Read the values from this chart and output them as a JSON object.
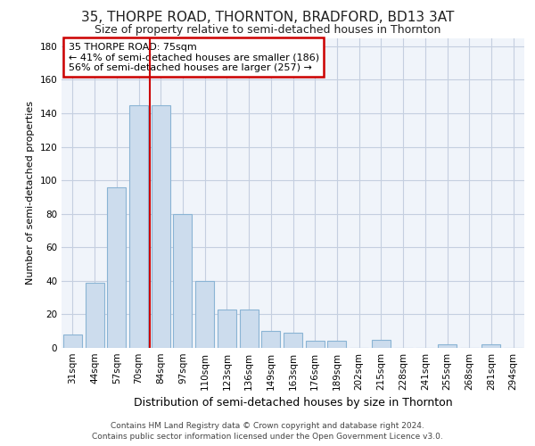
{
  "title": "35, THORPE ROAD, THORNTON, BRADFORD, BD13 3AT",
  "subtitle": "Size of property relative to semi-detached houses in Thornton",
  "xlabel": "Distribution of semi-detached houses by size in Thornton",
  "ylabel": "Number of semi-detached properties",
  "footer_line1": "Contains HM Land Registry data © Crown copyright and database right 2024.",
  "footer_line2": "Contains public sector information licensed under the Open Government Licence v3.0.",
  "categories": [
    "31sqm",
    "44sqm",
    "57sqm",
    "70sqm",
    "84sqm",
    "97sqm",
    "110sqm",
    "123sqm",
    "136sqm",
    "149sqm",
    "163sqm",
    "176sqm",
    "189sqm",
    "202sqm",
    "215sqm",
    "228sqm",
    "241sqm",
    "255sqm",
    "268sqm",
    "281sqm",
    "294sqm"
  ],
  "values": [
    8,
    39,
    96,
    145,
    145,
    80,
    40,
    23,
    23,
    10,
    9,
    4,
    4,
    0,
    5,
    0,
    0,
    2,
    0,
    2,
    0
  ],
  "bar_color": "#ccdced",
  "bar_edge_color": "#8ab4d4",
  "grid_color": "#c5cfe0",
  "background_color": "#f0f4fa",
  "property_label": "35 THORPE ROAD: 75sqm",
  "smaller_pct": 41,
  "smaller_count": 186,
  "larger_pct": 56,
  "larger_count": 257,
  "vline_color": "#cc0000",
  "annotation_box_edge_color": "#cc0000",
  "ylim": [
    0,
    185
  ],
  "yticks": [
    0,
    20,
    40,
    60,
    80,
    100,
    120,
    140,
    160,
    180
  ],
  "vline_x": 3.5,
  "title_fontsize": 11,
  "subtitle_fontsize": 9,
  "ylabel_fontsize": 8,
  "xlabel_fontsize": 9,
  "tick_fontsize": 7.5,
  "annotation_fontsize": 8,
  "footer_fontsize": 6.5
}
